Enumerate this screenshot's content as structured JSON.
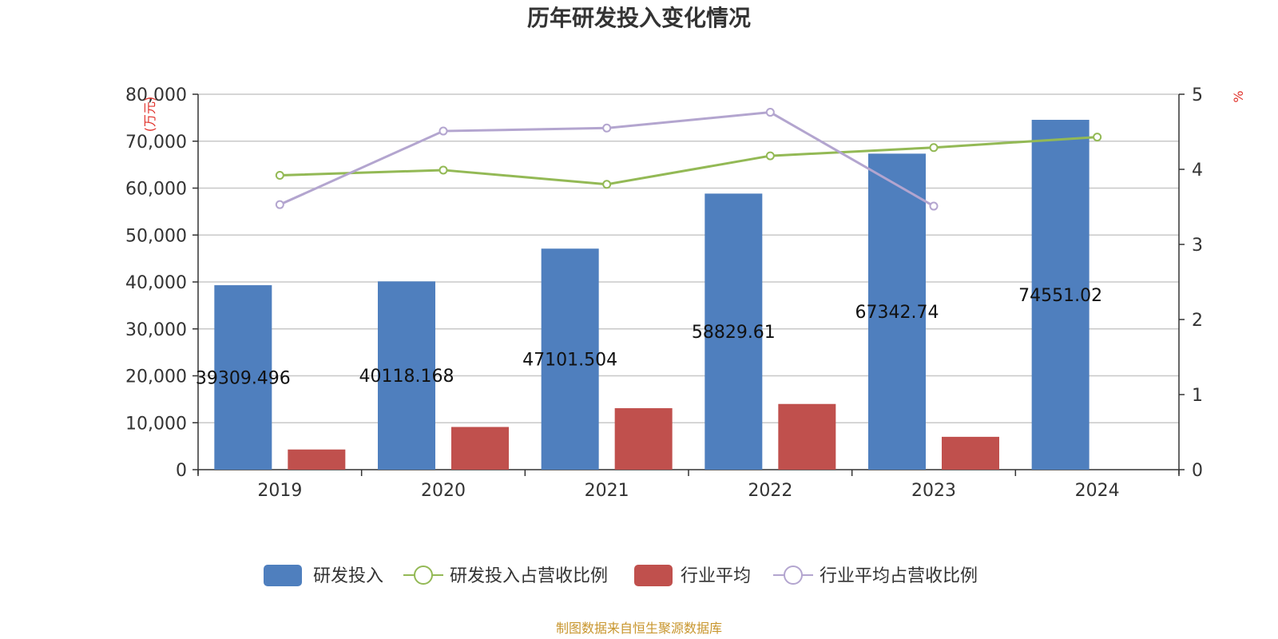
{
  "chart_data": {
    "type": "bar",
    "title": "历年研发投入变化情况",
    "categories": [
      "2019",
      "2020",
      "2021",
      "2022",
      "2023",
      "2024"
    ],
    "y_left": {
      "unit_label": "万元",
      "range": [
        0,
        80000
      ],
      "ticks": [
        "0",
        "10,000",
        "20,000",
        "30,000",
        "40,000",
        "50,000",
        "60,000",
        "70,000",
        "80,000"
      ]
    },
    "y_right": {
      "unit_label": "%",
      "range": [
        0,
        5
      ],
      "ticks": [
        "0",
        "1",
        "2",
        "3",
        "4",
        "5"
      ]
    },
    "series": [
      {
        "name": "研发投入",
        "kind": "bar",
        "axis": "left",
        "color": "#4f7fbe",
        "values": [
          39309.496,
          40118.168,
          47101.504,
          58829.61,
          67342.74,
          74551.02
        ],
        "labels": [
          "39309.496",
          "40118.168",
          "47101.504",
          "58829.61",
          "67342.74",
          "74551.02"
        ]
      },
      {
        "name": "研发投入占营收比例",
        "kind": "line",
        "axis": "right",
        "color": "#93b955",
        "values": [
          3.92,
          3.99,
          3.8,
          4.18,
          4.29,
          4.43
        ]
      },
      {
        "name": "行业平均",
        "kind": "bar",
        "axis": "left",
        "color": "#c0504d",
        "values": [
          4300,
          9100,
          13100,
          14000,
          7000,
          null
        ]
      },
      {
        "name": "行业平均占营收比例",
        "kind": "line",
        "axis": "right",
        "color": "#b3a5cf",
        "values": [
          3.53,
          4.51,
          4.55,
          4.76,
          3.51,
          null
        ]
      }
    ],
    "grid": true,
    "legend": "bottom-center"
  },
  "footer": {
    "source": "制图数据来自恒生聚源数据库"
  }
}
